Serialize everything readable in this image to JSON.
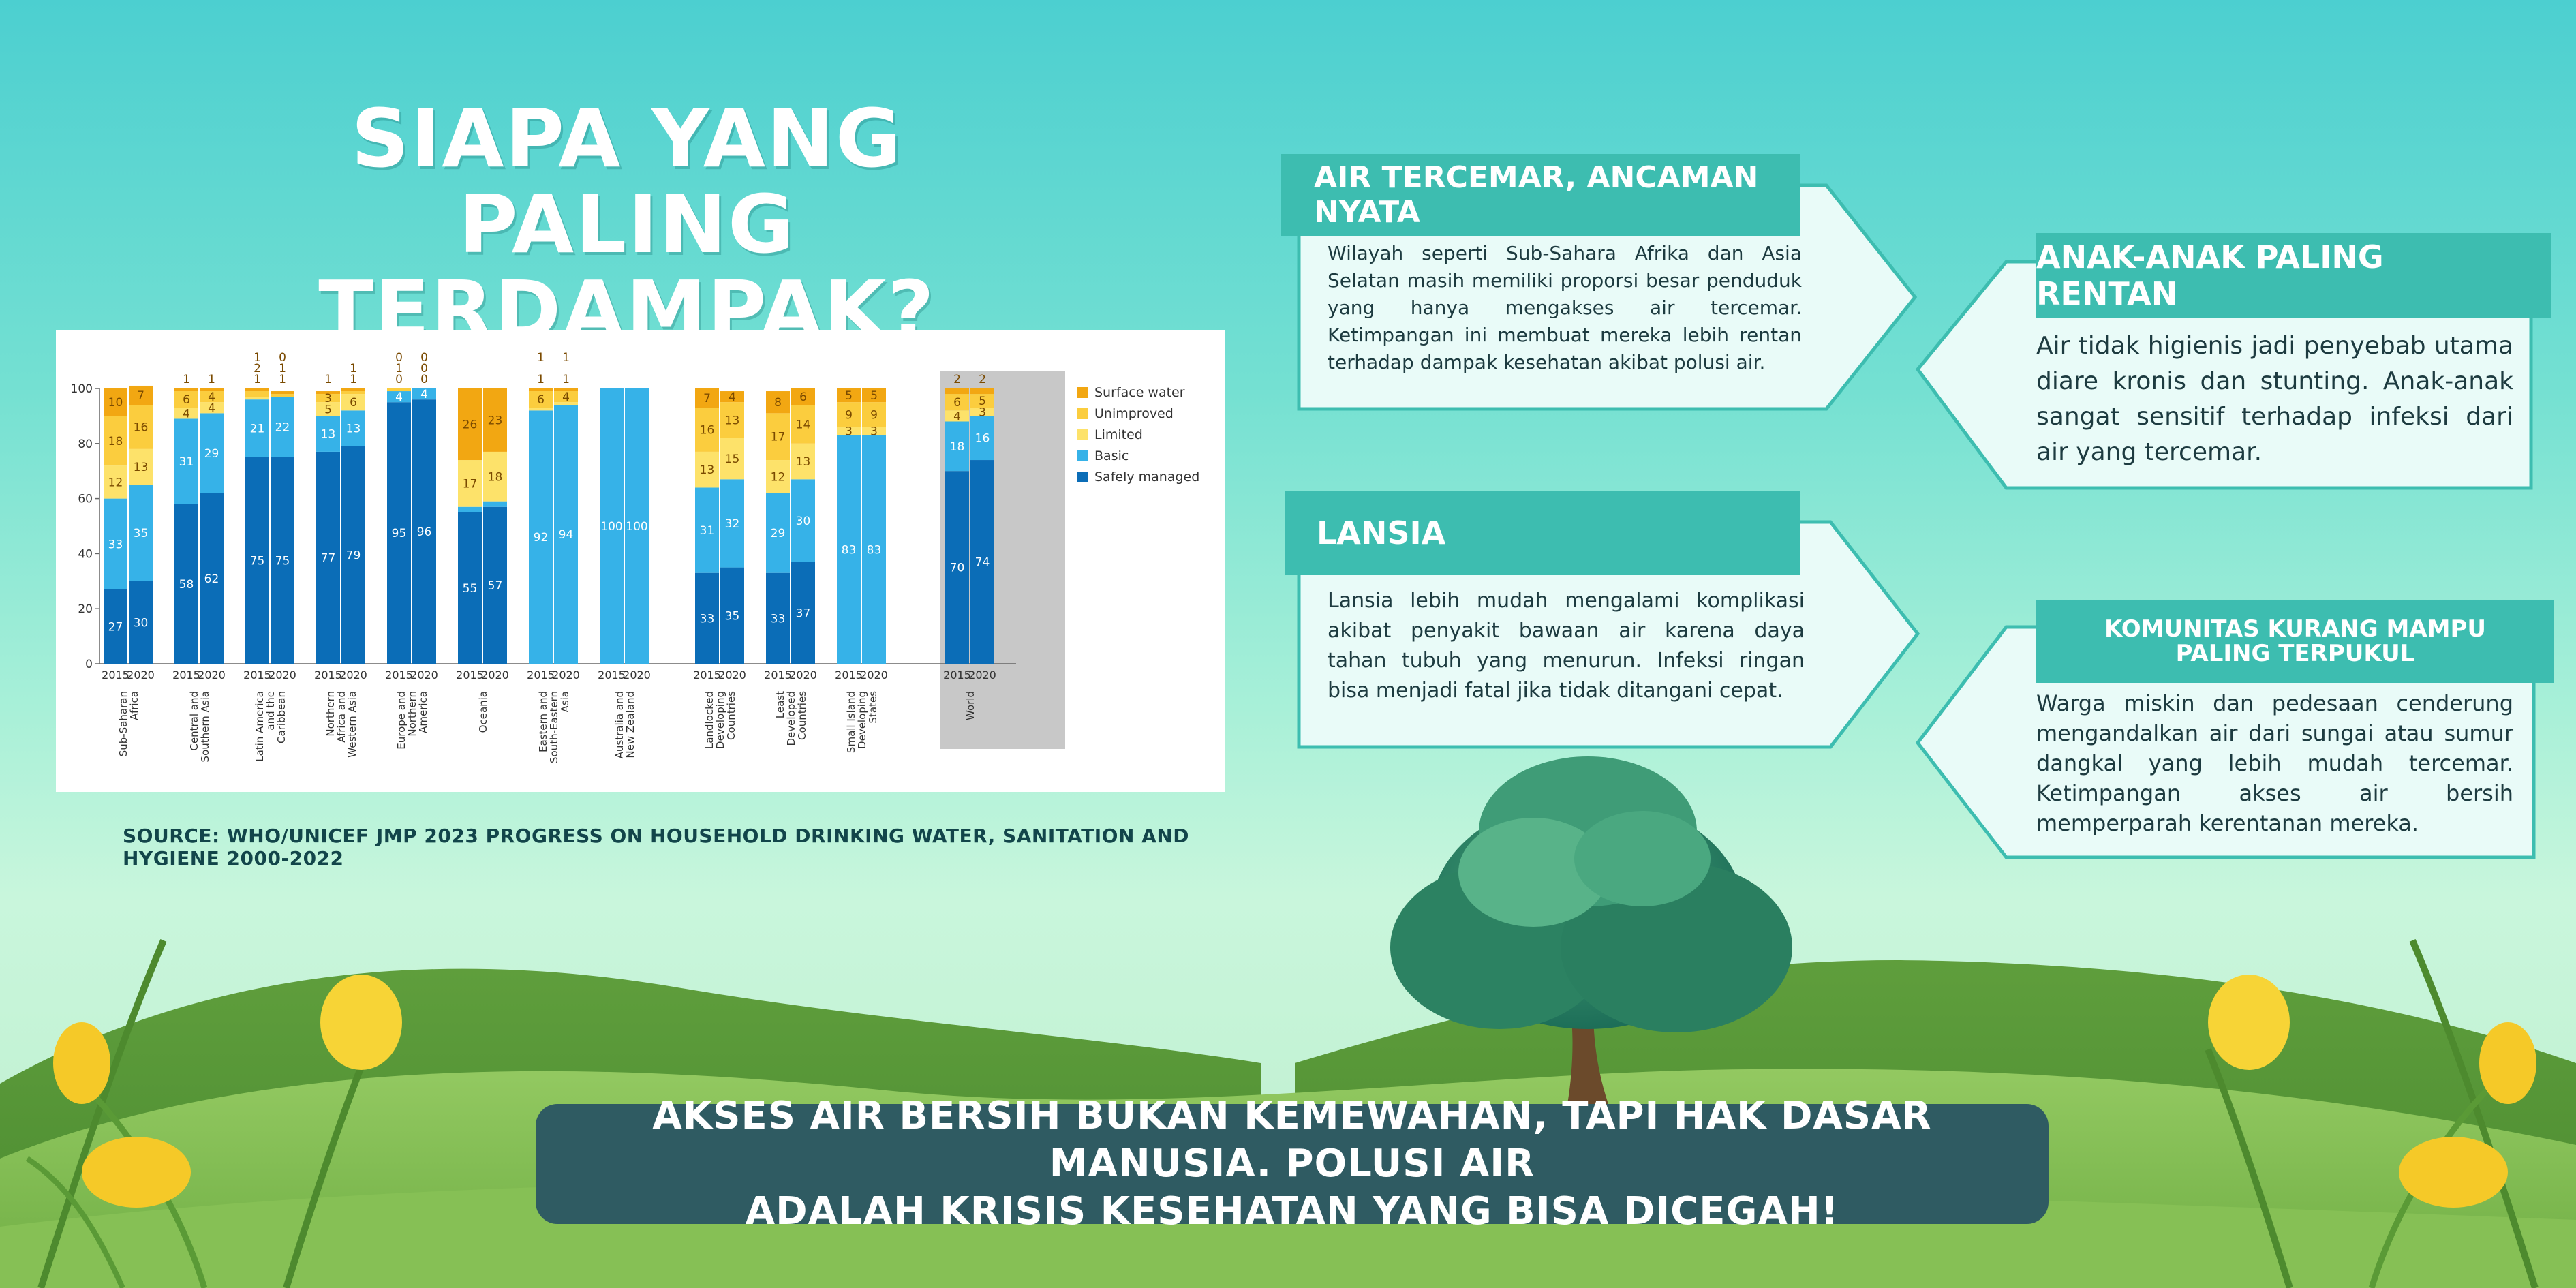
{
  "title_line1": "SIAPA YANG PALING",
  "title_line2": "TERDAMPAK?",
  "source": "SOURCE: WHO/UNICEF JMP 2023 PROGRESS ON HOUSEHOLD DRINKING WATER, SANITATION AND HYGIENE 2000-2022",
  "panels": {
    "air": {
      "heading": "AIR TERCEMAR, ANCAMAN NYATA",
      "text": "Wilayah seperti Sub-Sahara Afrika dan Asia Selatan masih memiliki proporsi besar penduduk yang hanya mengakses air tercemar. Ketimpangan ini membuat mereka lebih rentan terhadap dampak kesehatan akibat polusi air."
    },
    "anak": {
      "heading": "ANAK-ANAK PALING RENTAN",
      "text": "Air tidak higienis jadi penyebab utama diare kronis dan stunting. Anak-anak sangat sensitif terhadap infeksi dari air yang tercemar."
    },
    "lansia": {
      "heading": "LANSIA",
      "text": "Lansia lebih mudah mengalami komplikasi akibat penyakit bawaan air karena daya tahan tubuh yang menurun. Infeksi ringan bisa menjadi fatal jika tidak ditangani cepat."
    },
    "komunitas": {
      "heading_line1": "KOMUNITAS KURANG MAMPU",
      "heading_line2": "PALING TERPUKUL",
      "text": "Warga miskin dan pedesaan cenderung mengandalkan air dari sungai atau sumur dangkal yang lebih mudah tercemar. Ketimpangan akses air bersih memperparah kerentanan mereka."
    }
  },
  "banner_line1": "AKSES AIR BERSIH BUKAN KEMEWAHAN, TAPI HAK DASAR MANUSIA. POLUSI AIR",
  "banner_line2": "ADALAH KRISIS KESEHATAN YANG BISA DICEGAH!",
  "colors": {
    "safely_managed": "#0b6db7",
    "basic": "#36b2e8",
    "limited": "#fde26a",
    "unimproved": "#fbcd3e",
    "surface_water": "#f2a712",
    "world_bg": "#c8c8c8",
    "panel_head": "#3dbdb0"
  },
  "chart_data": {
    "type": "bar",
    "stacked": true,
    "ylim": [
      0,
      100
    ],
    "yticks": [
      "0",
      "20",
      "40",
      "60",
      "80",
      "100"
    ],
    "legend": [
      "Surface water",
      "Unimproved",
      "Limited",
      "Basic",
      "Safely managed"
    ],
    "legend_position": "right",
    "groups": [
      {
        "name": "Sub-Saharan Africa",
        "lines": [
          "Sub-Saharan",
          "Africa"
        ],
        "bars": [
          {
            "year": "2015",
            "values": [
              27,
              33,
              12,
              18,
              10
            ],
            "labels": [
              "27",
              "33",
              "12",
              "18",
              "10"
            ]
          },
          {
            "year": "2020",
            "values": [
              30,
              35,
              13,
              16,
              7
            ],
            "labels": [
              "30",
              "35",
              "13",
              "16",
              "7"
            ]
          }
        ]
      },
      {
        "name": "Central and Southern Asia",
        "lines": [
          "Central and",
          "Southern Asia"
        ],
        "bars": [
          {
            "year": "2015",
            "values": [
              58,
              31,
              4,
              6,
              1
            ],
            "labels": [
              "58",
              "31",
              "4",
              "6",
              "1"
            ]
          },
          {
            "year": "2020",
            "values": [
              62,
              29,
              4,
              4,
              1
            ],
            "labels": [
              "62",
              "29",
              "4",
              "4",
              "1"
            ]
          }
        ]
      },
      {
        "name": "Latin America and the Caribbean",
        "lines": [
          "Latin America",
          "and the",
          "Caribbean"
        ],
        "bars": [
          {
            "year": "2015",
            "values": [
              75,
              21,
              1,
              2,
              1
            ],
            "labels": [
              "75",
              "21",
              "1",
              "2",
              "1"
            ]
          },
          {
            "year": "2020",
            "values": [
              75,
              22,
              0,
              1,
              1
            ],
            "labels": [
              "75",
              "22",
              "0",
              "1",
              "1"
            ]
          }
        ]
      },
      {
        "name": "Northern Africa and Western Asia",
        "lines": [
          "Northern",
          "Africa and",
          "Western Asia"
        ],
        "bars": [
          {
            "year": "2015",
            "values": [
              77,
              13,
              5,
              3,
              1
            ],
            "labels": [
              "77",
              "13",
              "5",
              "3",
              "1"
            ]
          },
          {
            "year": "2020",
            "values": [
              79,
              13,
              6,
              1,
              1
            ],
            "labels": [
              "79",
              "13",
              "6",
              "1",
              "1"
            ]
          }
        ]
      },
      {
        "name": "Europe and Northern America",
        "lines": [
          "Europe and",
          "Northern",
          "America"
        ],
        "bars": [
          {
            "year": "2015",
            "values": [
              95,
              4,
              0,
              1,
              0
            ],
            "labels": [
              "95",
              "4",
              "0",
              "1",
              "0"
            ]
          },
          {
            "year": "2020",
            "values": [
              96,
              4,
              0,
              0,
              0
            ],
            "labels": [
              "96",
              "4",
              "0",
              "0",
              "0"
            ]
          }
        ]
      },
      {
        "name": "Oceania",
        "lines": [
          "Oceania"
        ],
        "bars": [
          {
            "year": "2015",
            "values": [
              55,
              2,
              17,
              0,
              26
            ],
            "labels": [
              "55",
              "2",
              "17",
              "",
              "26"
            ]
          },
          {
            "year": "2020",
            "values": [
              57,
              2,
              18,
              0,
              23
            ],
            "labels": [
              "57",
              "2",
              "18",
              "",
              "23"
            ]
          }
        ]
      },
      {
        "name": "Eastern and South-Eastern Asia",
        "lines": [
          "Eastern and",
          "South-Eastern",
          "Asia"
        ],
        "bars": [
          {
            "year": "2015",
            "values": [
              0,
              92,
              1,
              6,
              1
            ],
            "labels": [
              "",
              "92",
              "1",
              "6",
              "1"
            ]
          },
          {
            "year": "2020",
            "values": [
              0,
              94,
              1,
              4,
              1
            ],
            "labels": [
              "",
              "94",
              "1",
              "4",
              "1"
            ]
          }
        ]
      },
      {
        "name": "Australia and New Zealand",
        "lines": [
          "Australia and",
          "New Zealand"
        ],
        "bars": [
          {
            "year": "2015",
            "values": [
              0,
              100,
              0,
              0,
              0
            ],
            "labels": [
              "",
              "100",
              "",
              "",
              ""
            ]
          },
          {
            "year": "2020",
            "values": [
              0,
              100,
              0,
              0,
              0
            ],
            "labels": [
              "",
              "100",
              "",
              "",
              ""
            ]
          }
        ]
      },
      {
        "name": "Landlocked Developing Countries",
        "lines": [
          "Landlocked",
          "Developing",
          "Countries"
        ],
        "bars": [
          {
            "year": "2015",
            "values": [
              33,
              31,
              13,
              16,
              7
            ],
            "labels": [
              "33",
              "31",
              "13",
              "16",
              "7"
            ]
          },
          {
            "year": "2020",
            "values": [
              35,
              32,
              15,
              13,
              4
            ],
            "labels": [
              "35",
              "32",
              "15",
              "13",
              "4"
            ]
          }
        ]
      },
      {
        "name": "Least Developed Countries",
        "lines": [
          "Least",
          "Developed",
          "Countries"
        ],
        "bars": [
          {
            "year": "2015",
            "values": [
              33,
              29,
              12,
              17,
              8
            ],
            "labels": [
              "33",
              "29",
              "12",
              "17",
              "8"
            ]
          },
          {
            "year": "2020",
            "values": [
              37,
              30,
              13,
              14,
              6
            ],
            "labels": [
              "37",
              "30",
              "13",
              "14",
              "6"
            ]
          }
        ]
      },
      {
        "name": "Small Island Developing States",
        "lines": [
          "Small Island",
          "Developing",
          "States"
        ],
        "bars": [
          {
            "year": "2015",
            "values": [
              0,
              83,
              3,
              9,
              5
            ],
            "labels": [
              "",
              "83",
              "3",
              "9",
              "5"
            ]
          },
          {
            "year": "2020",
            "values": [
              0,
              83,
              3,
              9,
              5
            ],
            "labels": [
              "",
              "83",
              "3",
              "9",
              "5"
            ]
          }
        ]
      },
      {
        "name": "World",
        "lines": [
          "World"
        ],
        "highlight": true,
        "bars": [
          {
            "year": "2015",
            "values": [
              70,
              18,
              4,
              6,
              2
            ],
            "labels": [
              "70",
              "18",
              "4",
              "6",
              "2"
            ]
          },
          {
            "year": "2020",
            "values": [
              74,
              16,
              3,
              5,
              2
            ],
            "labels": [
              "74",
              "16",
              "3",
              "5",
              "2"
            ]
          }
        ]
      }
    ]
  }
}
